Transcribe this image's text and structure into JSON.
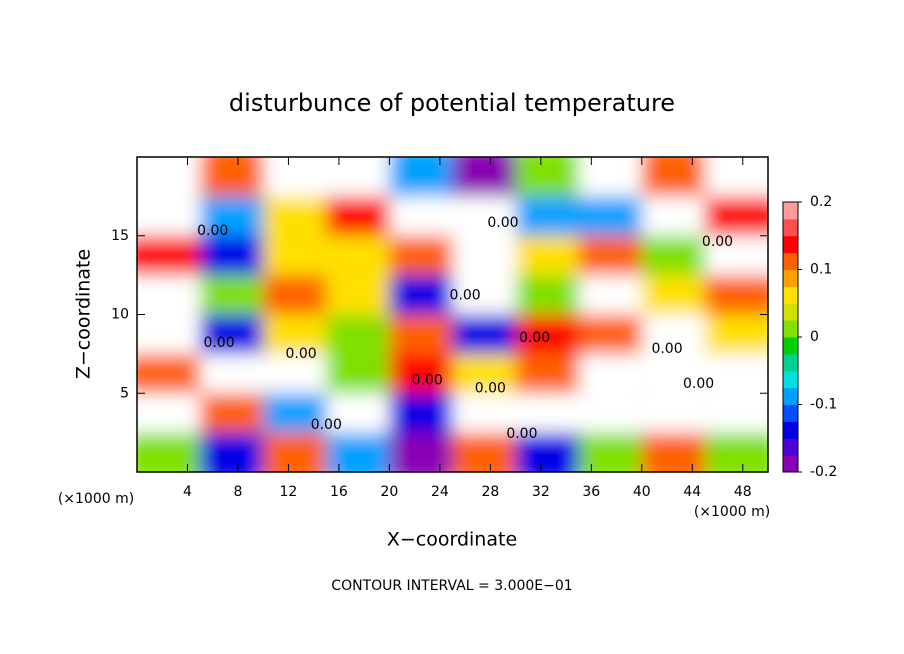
{
  "chart_data": {
    "type": "contour",
    "title": "disturbunce of potential temperature",
    "xlabel": "X−coordinate",
    "ylabel": "Z−coordinate",
    "x_unit": "(×1000 m)",
    "y_unit": "(×1000 m)",
    "footer": "CONTOUR INTERVAL = 3.000E−01",
    "xlim": [
      0,
      50
    ],
    "xticks": [
      4,
      8,
      12,
      16,
      20,
      24,
      28,
      32,
      36,
      40,
      44,
      48
    ],
    "ylim": [
      0,
      20
    ],
    "yticks": [
      5,
      10,
      15
    ],
    "x_edges": [
      0,
      5,
      10,
      15,
      20,
      25,
      30,
      35,
      40,
      45,
      50
    ],
    "y_edges": [
      20,
      17.5,
      15,
      12.5,
      10,
      7.5,
      5,
      2.5,
      0
    ],
    "z": [
      [
        0.3,
        0.1,
        0.3,
        0.3,
        -0.1,
        -0.2,
        0.0,
        0.3,
        0.1,
        0.3
      ],
      [
        0.3,
        -0.1,
        0.05,
        0.15,
        0.2,
        0.3,
        -0.1,
        -0.1,
        0.2,
        0.15
      ],
      [
        0.15,
        -0.15,
        0.05,
        0.05,
        0.1,
        0.3,
        0.05,
        0.1,
        0.0,
        0.2
      ],
      [
        0.2,
        0.0,
        0.1,
        0.05,
        -0.15,
        0.2,
        0.0,
        0.3,
        0.05,
        0.1
      ],
      [
        0.3,
        -0.15,
        0.05,
        0.0,
        0.1,
        -0.15,
        0.15,
        0.1,
        0.2,
        0.05
      ],
      [
        0.1,
        0.3,
        0.3,
        0.0,
        0.15,
        0.05,
        0.1,
        0.2,
        0.3,
        0.2
      ],
      [
        0.3,
        0.1,
        -0.1,
        0.2,
        -0.15,
        0.3,
        0.2,
        0.3,
        0.2,
        0.3
      ],
      [
        0.0,
        -0.15,
        0.1,
        -0.1,
        -0.2,
        0.1,
        -0.15,
        0.0,
        0.1,
        0.0
      ]
    ],
    "colorbar": {
      "lim": [
        -0.2,
        0.2
      ],
      "ticks": [
        -0.2,
        -0.1,
        0,
        0.1,
        0.2
      ],
      "colors": [
        "#8a00b4",
        "#5000d2",
        "#0000e6",
        "#0050ff",
        "#00a0ff",
        "#00e0e0",
        "#00d090",
        "#00d000",
        "#80e000",
        "#d0e000",
        "#ffe000",
        "#ffa000",
        "#ff6000",
        "#ff0000",
        "#ff5050",
        "#ff9a9a"
      ],
      "above_color": "#ffffff"
    },
    "contour_labels": [
      {
        "x": 6,
        "z": 15.3,
        "label": "0.00"
      },
      {
        "x": 29,
        "z": 15.8,
        "label": "0.00"
      },
      {
        "x": 46,
        "z": 14.6,
        "label": "0.00"
      },
      {
        "x": 26,
        "z": 11.2,
        "label": "0.00"
      },
      {
        "x": 6.5,
        "z": 8.2,
        "label": "0.00"
      },
      {
        "x": 13,
        "z": 7.5,
        "label": "0.00"
      },
      {
        "x": 31.5,
        "z": 8.5,
        "label": "0.00"
      },
      {
        "x": 42,
        "z": 7.8,
        "label": "0.00"
      },
      {
        "x": 23,
        "z": 5.8,
        "label": "0.00"
      },
      {
        "x": 28,
        "z": 5.3,
        "label": "0.00"
      },
      {
        "x": 44.5,
        "z": 5.6,
        "label": "0.00"
      },
      {
        "x": 15,
        "z": 3.0,
        "label": "0.00"
      },
      {
        "x": 30.5,
        "z": 2.4,
        "label": "0.00"
      }
    ]
  }
}
